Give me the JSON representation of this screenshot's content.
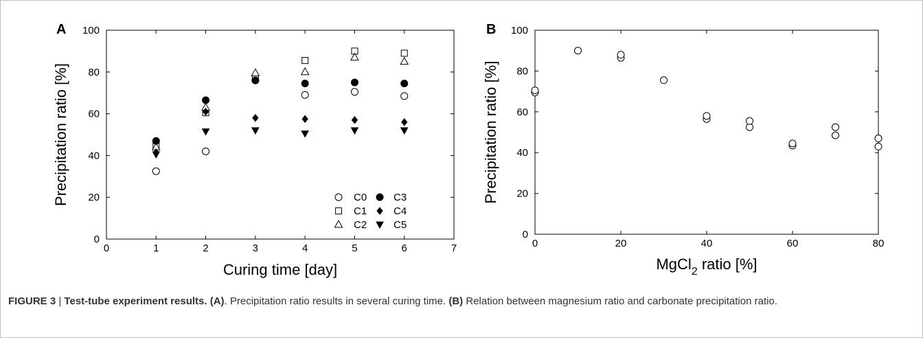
{
  "caption": {
    "figure_label": "FIGURE 3",
    "separator": " | ",
    "title": "Test-tube experiment results.",
    "panel_a_ref": "(A)",
    "panel_a_text": ". Precipitation ratio results in several curing time.",
    "panel_b_ref": "(B)",
    "panel_b_text": " Relation between magnesium ratio and carbonate precipitation ratio."
  },
  "chart_data": [
    {
      "panel": "A",
      "type": "scatter",
      "xlabel": "Curing time [day]",
      "ylabel": "Precipitation ratio [%]",
      "xlim": [
        0,
        7
      ],
      "ylim": [
        0,
        100
      ],
      "xticks": [
        0,
        1,
        2,
        3,
        4,
        5,
        6,
        7
      ],
      "yticks": [
        0,
        20,
        40,
        60,
        80,
        100
      ],
      "grid": false,
      "legend_position": "bottom-right",
      "series": [
        {
          "name": "C0",
          "marker": "circle-open",
          "x": [
            1,
            2,
            3,
            4,
            5,
            6
          ],
          "y": [
            32.5,
            42,
            76,
            69,
            70.5,
            68.5
          ]
        },
        {
          "name": "C1",
          "marker": "square-open",
          "x": [
            1,
            2,
            3,
            4,
            5,
            6
          ],
          "y": [
            45,
            60.5,
            77.5,
            85.5,
            90,
            89
          ]
        },
        {
          "name": "C2",
          "marker": "triangle-up-open",
          "x": [
            1,
            2,
            3,
            4,
            5,
            6
          ],
          "y": [
            44,
            63,
            79.5,
            80,
            87,
            85
          ]
        },
        {
          "name": "C3",
          "marker": "circle-filled",
          "x": [
            1,
            2,
            3,
            4,
            5,
            6
          ],
          "y": [
            47,
            66.5,
            76,
            74.5,
            75,
            74.5
          ]
        },
        {
          "name": "C4",
          "marker": "diamond-filled",
          "x": [
            1,
            2,
            3,
            4,
            5,
            6
          ],
          "y": [
            41.5,
            61,
            58,
            57.5,
            57,
            56
          ]
        },
        {
          "name": "C5",
          "marker": "triangle-down-filled",
          "x": [
            1,
            2,
            3,
            4,
            5,
            6
          ],
          "y": [
            40.5,
            51.5,
            52,
            50.5,
            52,
            52
          ]
        }
      ]
    },
    {
      "panel": "B",
      "type": "scatter",
      "xlabel_main": "MgCl",
      "xlabel_sub": "2",
      "xlabel_rest": " ratio [%]",
      "ylabel": "Precipitation ratio [%]",
      "xlim": [
        0,
        80
      ],
      "ylim": [
        0,
        100
      ],
      "xticks": [
        0,
        20,
        40,
        60,
        80
      ],
      "yticks": [
        0,
        20,
        40,
        60,
        80,
        100
      ],
      "grid": false,
      "series": [
        {
          "marker": "circle-open",
          "x": [
            0,
            0,
            10,
            20,
            20,
            30,
            40,
            40,
            50,
            50,
            60,
            60,
            70,
            70,
            80,
            80
          ],
          "y": [
            69.5,
            70.5,
            90,
            86.5,
            88,
            75.5,
            56.5,
            58,
            52.5,
            55.5,
            43.5,
            44.5,
            48.5,
            52.5,
            43,
            47
          ]
        }
      ]
    }
  ]
}
